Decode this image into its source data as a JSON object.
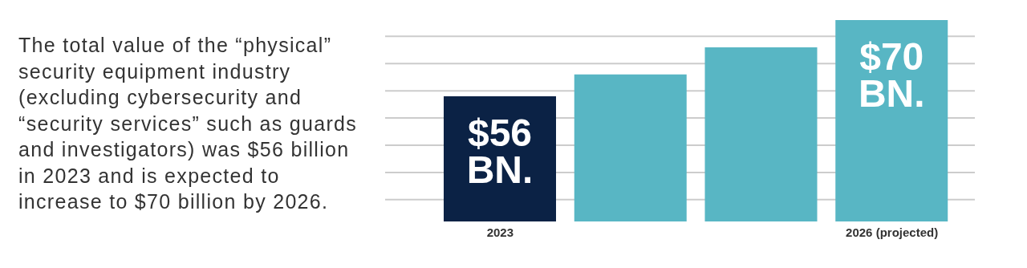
{
  "chart_data": {
    "type": "bar",
    "categories": [
      "2023",
      null,
      null,
      "2026 (projected)"
    ],
    "values": [
      56,
      60,
      65,
      70
    ],
    "colors": [
      "#0b2245",
      "#58b6c4",
      "#58b6c4",
      "#58b6c4"
    ],
    "value_labels": [
      "$56 BN.",
      null,
      null,
      "$70 BN."
    ],
    "ylim": [
      33,
      70
    ],
    "yticks": [
      {
        "value": 37,
        "label": null
      },
      {
        "value": 42,
        "label": null
      },
      {
        "value": 47,
        "label": null
      },
      {
        "value": 52,
        "label": null
      },
      {
        "value": 57,
        "label": null
      },
      {
        "value": 62,
        "label": null
      },
      {
        "value": 67,
        "label": null
      }
    ],
    "grid": "y",
    "tick_labels": "x",
    "legend": false,
    "annotations": [
      "The total value of the “physical” security equipment industry (excluding cybersecurity and “security services” such as guards and investigators) was $56 billion in 2023 and is expected to increase to $70 billion by 2026."
    ]
  }
}
